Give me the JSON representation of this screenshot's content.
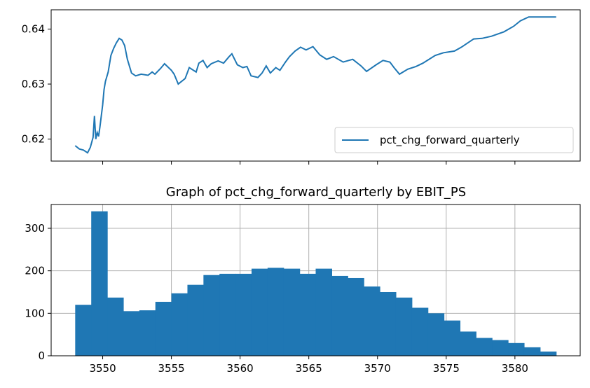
{
  "chart_data": [
    {
      "type": "line",
      "title": "",
      "xlabel": "",
      "ylabel": "",
      "x_range": [
        3546.25,
        3584.75
      ],
      "ylim": [
        0.616,
        0.6435
      ],
      "yticks": [
        0.62,
        0.63,
        0.64
      ],
      "ytick_labels": [
        "0.62",
        "0.63",
        "0.64"
      ],
      "xticks": [
        3550,
        3555,
        3560,
        3565,
        3570,
        3575,
        3580
      ],
      "xtick_labels_visible": false,
      "grid": false,
      "legend": {
        "position": "lower-right",
        "entries": [
          "pct_chg_forward_quarterly"
        ]
      },
      "series": [
        {
          "name": "pct_chg_forward_quarterly",
          "color": "#1f77b4",
          "x": [
            3548.0,
            3548.3,
            3548.6,
            3548.9,
            3549.1,
            3549.3,
            3549.4,
            3549.5,
            3549.6,
            3549.7,
            3549.8,
            3550.0,
            3550.1,
            3550.2,
            3550.4,
            3550.6,
            3550.8,
            3551.0,
            3551.2,
            3551.4,
            3551.6,
            3551.8,
            3552.1,
            3552.4,
            3552.8,
            3553.3,
            3553.6,
            3553.8,
            3554.2,
            3554.5,
            3555.0,
            3555.2,
            3555.5,
            3556.0,
            3556.3,
            3556.8,
            3557.0,
            3557.3,
            3557.6,
            3557.9,
            3558.4,
            3558.8,
            3559.2,
            3559.4,
            3559.8,
            3560.2,
            3560.5,
            3560.8,
            3561.3,
            3561.6,
            3561.9,
            3562.2,
            3562.6,
            3562.9,
            3563.3,
            3563.6,
            3564.0,
            3564.4,
            3564.8,
            3565.3,
            3565.8,
            3566.3,
            3566.8,
            3567.5,
            3568.2,
            3568.8,
            3569.2,
            3569.9,
            3570.4,
            3570.9,
            3571.2,
            3571.6,
            3572.2,
            3572.8,
            3573.3,
            3574.2,
            3574.8,
            3575.6,
            3576.1,
            3577.0,
            3577.6,
            3578.3,
            3579.2,
            3579.9,
            3580.4,
            3581.0,
            3582.0,
            3583.0
          ],
          "y": [
            0.6188,
            0.6182,
            0.618,
            0.6175,
            0.6185,
            0.6203,
            0.6242,
            0.62,
            0.6212,
            0.6205,
            0.6222,
            0.6262,
            0.629,
            0.6305,
            0.6322,
            0.6352,
            0.6365,
            0.6375,
            0.6383,
            0.638,
            0.637,
            0.6345,
            0.632,
            0.6315,
            0.6318,
            0.6316,
            0.6322,
            0.6318,
            0.6328,
            0.6337,
            0.6325,
            0.6318,
            0.63,
            0.631,
            0.633,
            0.6322,
            0.6338,
            0.6343,
            0.633,
            0.6337,
            0.6342,
            0.6338,
            0.635,
            0.6355,
            0.6335,
            0.633,
            0.6332,
            0.6315,
            0.6312,
            0.632,
            0.6333,
            0.632,
            0.633,
            0.6325,
            0.634,
            0.635,
            0.636,
            0.6367,
            0.6362,
            0.6368,
            0.6353,
            0.6345,
            0.635,
            0.634,
            0.6345,
            0.6333,
            0.6323,
            0.6335,
            0.6343,
            0.634,
            0.633,
            0.6318,
            0.6327,
            0.6332,
            0.6338,
            0.6352,
            0.6357,
            0.636,
            0.6367,
            0.6382,
            0.6383,
            0.6387,
            0.6395,
            0.6405,
            0.6415,
            0.6422,
            0.6422,
            0.6422
          ]
        }
      ]
    },
    {
      "type": "bar",
      "title": "Graph of pct_chg_forward_quarterly by EBIT_PS",
      "xlabel": "",
      "ylabel": "",
      "x_range": [
        3546.25,
        3584.75
      ],
      "ylim": [
        0,
        356
      ],
      "yticks": [
        0,
        100,
        200,
        300
      ],
      "ytick_labels": [
        "0",
        "100",
        "200",
        "300"
      ],
      "xticks": [
        3550,
        3555,
        3560,
        3565,
        3570,
        3575,
        3580
      ],
      "xtick_labels": [
        "3550",
        "3555",
        "3560",
        "3565",
        "3570",
        "3575",
        "3580"
      ],
      "grid": true,
      "bin_start": 3548.0,
      "bin_width": 1.1667,
      "color": "#1f77b4",
      "values": [
        120,
        340,
        137,
        105,
        107,
        127,
        147,
        167,
        190,
        193,
        193,
        205,
        207,
        205,
        193,
        205,
        188,
        183,
        163,
        150,
        137,
        113,
        100,
        83,
        57,
        42,
        37,
        30,
        20,
        10
      ]
    }
  ]
}
